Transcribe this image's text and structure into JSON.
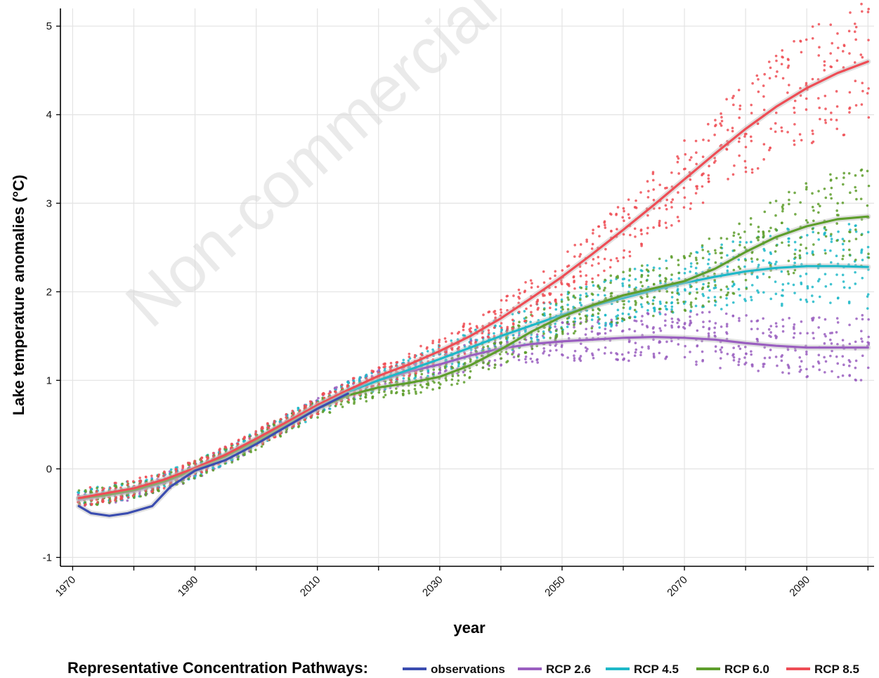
{
  "chart_data": {
    "type": "line",
    "xlabel": "year",
    "ylabel": "Lake temperature anomalies (°C)",
    "xlim": [
      1970,
      2100
    ],
    "ylim": [
      -1.1,
      5.2
    ],
    "x_ticks": [
      1970,
      1990,
      2010,
      2030,
      2050,
      2070,
      2090
    ],
    "y_ticks": [
      -1,
      0,
      1,
      2,
      3,
      4,
      5
    ],
    "grid": true,
    "legend_title": "Representative Concentration Pathways:",
    "legend_position": "bottom",
    "watermark": "Non-commercial use",
    "scatter_points": "yearly ensemble member values plotted as small dots around each smoothed curve (RCP 2.6, 4.5, 6.0, 8.5)",
    "series": [
      {
        "name": "observations",
        "color": "#3b4db0",
        "x": [
          1971,
          1973,
          1976,
          1979,
          1983,
          1986,
          1990,
          1995,
          2000,
          2005,
          2010,
          2015
        ],
        "y": [
          -0.42,
          -0.5,
          -0.53,
          -0.5,
          -0.42,
          -0.2,
          -0.02,
          0.1,
          0.28,
          0.48,
          0.68,
          0.85
        ]
      },
      {
        "name": "RCP 2.6",
        "color": "#9a5fc0",
        "x": [
          1971,
          1975,
          1980,
          1985,
          1990,
          1995,
          2000,
          2005,
          2010,
          2015,
          2020,
          2025,
          2030,
          2035,
          2040,
          2045,
          2050,
          2055,
          2060,
          2065,
          2070,
          2075,
          2080,
          2085,
          2090,
          2095,
          2100
        ],
        "y": [
          -0.35,
          -0.3,
          -0.25,
          -0.15,
          -0.02,
          0.15,
          0.32,
          0.52,
          0.72,
          0.88,
          1.0,
          1.1,
          1.18,
          1.28,
          1.36,
          1.41,
          1.44,
          1.46,
          1.48,
          1.49,
          1.48,
          1.46,
          1.42,
          1.39,
          1.37,
          1.37,
          1.37
        ]
      },
      {
        "name": "RCP 4.5",
        "color": "#1eb8c8",
        "x": [
          1971,
          1975,
          1980,
          1985,
          1990,
          1995,
          2000,
          2005,
          2010,
          2015,
          2020,
          2025,
          2030,
          2035,
          2040,
          2045,
          2050,
          2055,
          2060,
          2065,
          2070,
          2075,
          2080,
          2085,
          2090,
          2095,
          2100
        ],
        "y": [
          -0.33,
          -0.29,
          -0.23,
          -0.13,
          0.0,
          0.15,
          0.33,
          0.52,
          0.7,
          0.87,
          1.0,
          1.12,
          1.24,
          1.37,
          1.5,
          1.62,
          1.74,
          1.84,
          1.93,
          2.02,
          2.1,
          2.17,
          2.23,
          2.27,
          2.29,
          2.29,
          2.28
        ]
      },
      {
        "name": "RCP 6.0",
        "color": "#5e9e2c",
        "x": [
          1971,
          1975,
          1980,
          1985,
          1990,
          1995,
          2000,
          2005,
          2010,
          2015,
          2020,
          2025,
          2030,
          2035,
          2040,
          2045,
          2050,
          2055,
          2060,
          2065,
          2070,
          2075,
          2080,
          2085,
          2090,
          2095,
          2100
        ],
        "y": [
          -0.33,
          -0.3,
          -0.24,
          -0.14,
          -0.01,
          0.14,
          0.31,
          0.5,
          0.68,
          0.83,
          0.92,
          0.97,
          1.04,
          1.17,
          1.35,
          1.55,
          1.72,
          1.85,
          1.96,
          2.04,
          2.12,
          2.26,
          2.45,
          2.62,
          2.74,
          2.82,
          2.85
        ]
      },
      {
        "name": "RCP 8.5",
        "color": "#ee4d55",
        "x": [
          1971,
          1975,
          1980,
          1985,
          1990,
          1995,
          2000,
          2005,
          2010,
          2015,
          2020,
          2025,
          2030,
          2035,
          2040,
          2045,
          2050,
          2055,
          2060,
          2065,
          2070,
          2075,
          2080,
          2085,
          2090,
          2095,
          2100
        ],
        "y": [
          -0.33,
          -0.28,
          -0.22,
          -0.12,
          0.01,
          0.16,
          0.34,
          0.53,
          0.72,
          0.89,
          1.05,
          1.18,
          1.33,
          1.5,
          1.7,
          1.93,
          2.17,
          2.43,
          2.7,
          2.98,
          3.27,
          3.56,
          3.84,
          4.09,
          4.3,
          4.47,
          4.6
        ]
      }
    ]
  }
}
